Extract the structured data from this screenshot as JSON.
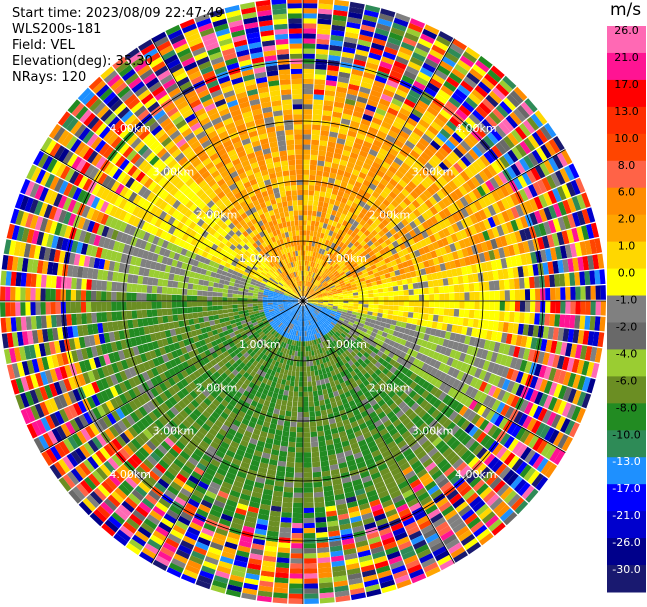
{
  "header": {
    "start_time": "Start time: 2023/08/09 22:47:49",
    "site": "WLS200s-181",
    "field": "Field: VEL",
    "elevation": "Elevation(deg): 35.30",
    "nrays": "NRays: 120"
  },
  "colorbar": {
    "unit": "m/s",
    "ticks": [
      "26.0",
      "21.0",
      "17.0",
      "13.0",
      "10.0",
      "8.0",
      "6.0",
      "2.0",
      "1.0",
      "0.0",
      "-1.0",
      "-2.0",
      "-4.0",
      "-6.0",
      "-8.0",
      "-10.0",
      "-13.0",
      "-17.0",
      "-21.0",
      "-26.0",
      "-30.0"
    ],
    "colors": [
      "#ff69b4",
      "#ff1493",
      "#ff0000",
      "#ff2d00",
      "#ff4500",
      "#ff6347",
      "#ff8c00",
      "#ffa500",
      "#ffd700",
      "#ffff00",
      "#808080",
      "#696969",
      "#9acd32",
      "#6b8e23",
      "#228b22",
      "#2e8b57",
      "#1e90ff",
      "#0000ff",
      "#0000cd",
      "#00008b",
      "#191970"
    ]
  },
  "chart_data": {
    "type": "heatmap",
    "description_axis": "polar PPI scan",
    "range_rings_km": [
      1.0,
      2.0,
      3.0,
      4.0
    ],
    "ring_labels": [
      "1.00km",
      "2.00km",
      "3.00km",
      "4.00km"
    ],
    "nrays": 120,
    "vmin": -30.0,
    "vmax": 26.0,
    "color_scale": "piecewise legend"
  }
}
